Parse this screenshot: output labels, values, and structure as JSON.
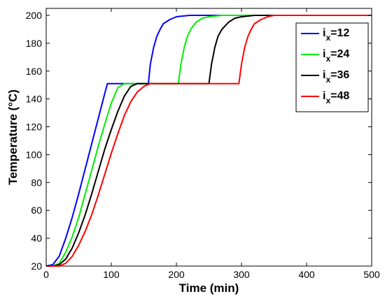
{
  "chart_data": {
    "type": "line",
    "xlabel": "Time (min)",
    "ylabel": "Temperature (°C)",
    "xlim": [
      0,
      500
    ],
    "ylim": [
      20,
      205
    ],
    "xticks": [
      0,
      100,
      200,
      300,
      400,
      500
    ],
    "yticks": [
      20,
      40,
      60,
      80,
      100,
      120,
      140,
      160,
      180,
      200
    ],
    "grid": false,
    "legend_position": "top-right",
    "series": [
      {
        "name": "i",
        "subscript": "x",
        "value": "=12",
        "color": "#0000ff",
        "x": [
          0,
          10,
          20,
          30,
          40,
          50,
          60,
          70,
          80,
          90,
          94,
          110,
          130,
          150,
          157,
          160,
          165,
          170,
          175,
          180,
          190,
          200,
          220,
          250,
          300,
          400,
          500
        ],
        "y": [
          20,
          21,
          27,
          40,
          55,
          72,
          90,
          108,
          126,
          144,
          151,
          151,
          151,
          151,
          151,
          165,
          177,
          185,
          190,
          194,
          197,
          199,
          200,
          200,
          200,
          200,
          200
        ]
      },
      {
        "name": "i",
        "subscript": "x",
        "value": "=24",
        "color": "#00ee00",
        "x": [
          0,
          10,
          20,
          30,
          40,
          50,
          60,
          70,
          80,
          90,
          100,
          110,
          120,
          150,
          180,
          203,
          207,
          212,
          217,
          222,
          230,
          240,
          250,
          270,
          300,
          400,
          500
        ],
        "y": [
          20,
          20,
          22,
          30,
          41,
          55,
          72,
          89,
          106,
          122,
          137,
          148,
          151,
          151,
          151,
          151,
          165,
          177,
          185,
          190,
          195,
          198,
          199,
          200,
          200,
          200,
          200
        ]
      },
      {
        "name": "i",
        "subscript": "x",
        "value": "=36",
        "color": "#000000",
        "x": [
          0,
          10,
          20,
          30,
          40,
          50,
          60,
          70,
          80,
          90,
          100,
          110,
          120,
          130,
          140,
          180,
          220,
          250,
          254,
          259,
          264,
          270,
          280,
          290,
          300,
          320,
          350,
          400,
          500
        ],
        "y": [
          20,
          20,
          21,
          25,
          33,
          44,
          57,
          72,
          88,
          104,
          118,
          131,
          142,
          149,
          151,
          151,
          151,
          151,
          165,
          177,
          185,
          190,
          195,
          198,
          199,
          200,
          200,
          200,
          200
        ]
      },
      {
        "name": "i",
        "subscript": "x",
        "value": "=48",
        "color": "#ff0000",
        "x": [
          0,
          10,
          20,
          30,
          40,
          50,
          60,
          70,
          80,
          90,
          100,
          110,
          120,
          130,
          140,
          150,
          160,
          200,
          250,
          296,
          300,
          305,
          310,
          315,
          320,
          330,
          340,
          350,
          370,
          400,
          500
        ],
        "y": [
          20,
          20,
          20,
          22,
          27,
          35,
          45,
          57,
          71,
          86,
          101,
          115,
          128,
          138,
          145,
          149,
          151,
          151,
          151,
          151,
          165,
          177,
          185,
          190,
          194,
          197,
          199,
          200,
          200,
          200,
          200
        ]
      }
    ]
  }
}
